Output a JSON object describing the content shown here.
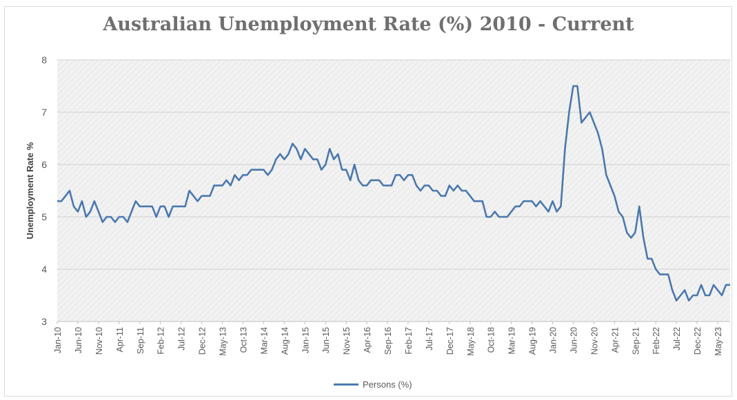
{
  "chart_data": {
    "type": "line",
    "title": "Australian Unemployment Rate (%) 2010 - Current",
    "ylabel": "Unemployment Rate %",
    "xlabel": "",
    "ylim": [
      3,
      8
    ],
    "yticks": [
      "3",
      "4",
      "5",
      "6",
      "7",
      "8"
    ],
    "x_start": "Jan-10",
    "x_tick_labels": [
      "Jan-10",
      "Jun-10",
      "Nov-10",
      "Apr-11",
      "Sep-11",
      "Feb-12",
      "Jul-12",
      "Dec-12",
      "May-13",
      "Oct-13",
      "Mar-14",
      "Aug-14",
      "Jan-15",
      "Jun-15",
      "Nov-15",
      "Apr-16",
      "Sep-16",
      "Feb-17",
      "Jul-17",
      "Dec-17",
      "May-18",
      "Oct-18",
      "Mar-19",
      "Aug-19",
      "Jan-20",
      "Jun-20",
      "Nov-20",
      "Apr-21",
      "Sep-21",
      "Feb-22",
      "Jul-22",
      "Dec-22",
      "May-23"
    ],
    "grid": true,
    "legend_position": "bottom",
    "series": [
      {
        "name": "Persons (%)",
        "color": "#4a78ad",
        "values": [
          5.3,
          5.3,
          5.4,
          5.5,
          5.2,
          5.1,
          5.3,
          5.0,
          5.1,
          5.3,
          5.1,
          4.9,
          5.0,
          5.0,
          4.9,
          5.0,
          5.0,
          4.9,
          5.1,
          5.3,
          5.2,
          5.2,
          5.2,
          5.2,
          5.0,
          5.2,
          5.2,
          5.0,
          5.2,
          5.2,
          5.2,
          5.2,
          5.5,
          5.4,
          5.3,
          5.4,
          5.4,
          5.4,
          5.6,
          5.6,
          5.6,
          5.7,
          5.6,
          5.8,
          5.7,
          5.8,
          5.8,
          5.9,
          5.9,
          5.9,
          5.9,
          5.8,
          5.9,
          6.1,
          6.2,
          6.1,
          6.2,
          6.4,
          6.3,
          6.1,
          6.3,
          6.2,
          6.1,
          6.1,
          5.9,
          6.0,
          6.3,
          6.1,
          6.2,
          5.9,
          5.9,
          5.7,
          6.0,
          5.7,
          5.6,
          5.6,
          5.7,
          5.7,
          5.7,
          5.6,
          5.6,
          5.6,
          5.8,
          5.8,
          5.7,
          5.8,
          5.8,
          5.6,
          5.5,
          5.6,
          5.6,
          5.5,
          5.5,
          5.4,
          5.4,
          5.6,
          5.5,
          5.6,
          5.5,
          5.5,
          5.4,
          5.3,
          5.3,
          5.3,
          5.0,
          5.0,
          5.1,
          5.0,
          5.0,
          5.0,
          5.1,
          5.2,
          5.2,
          5.3,
          5.3,
          5.3,
          5.2,
          5.3,
          5.2,
          5.1,
          5.3,
          5.1,
          5.2,
          6.3,
          7.0,
          7.5,
          7.5,
          6.8,
          6.9,
          7.0,
          6.8,
          6.6,
          6.3,
          5.8,
          5.6,
          5.4,
          5.1,
          5.0,
          4.7,
          4.6,
          4.7,
          5.2,
          4.6,
          4.2,
          4.2,
          4.0,
          3.9,
          3.9,
          3.9,
          3.6,
          3.4,
          3.5,
          3.6,
          3.4,
          3.5,
          3.5,
          3.7,
          3.5,
          3.5,
          3.7,
          3.6,
          3.5,
          3.7,
          3.7
        ]
      }
    ]
  }
}
